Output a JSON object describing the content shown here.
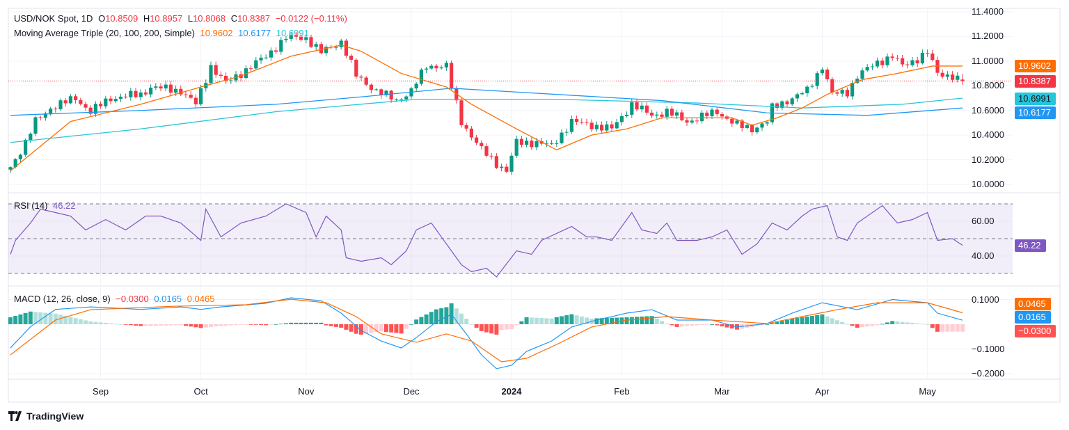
{
  "header": {
    "symbol": "USD/NOK Spot, 1D",
    "o_label": "O",
    "o": "10.8509",
    "h_label": "H",
    "h": "10.8957",
    "l_label": "L",
    "l": "10.8068",
    "c_label": "C",
    "c": "10.8387",
    "change": "−0.0122 (−0.11%)",
    "ma_title": "Moving Average Triple (20, 100, 200, Simple)",
    "ma20": "10.9602",
    "ma100": "10.6177",
    "ma200": "10.6991"
  },
  "rsi_legend": {
    "title": "RSI (14)",
    "value": "46.22"
  },
  "macd_legend": {
    "title": "MACD (12, 26, close, 9)",
    "hist": "−0.0300",
    "macd": "0.0165",
    "signal": "0.0465"
  },
  "branding": {
    "logo_icon": "tradingview-logo-icon",
    "name": "TradingView"
  },
  "colors": {
    "up": "#089981",
    "down": "#f23645",
    "ma20": "#ff6d00",
    "ma100": "#2196f3",
    "ma200": "#26c6da",
    "rsi": "#7e57c2",
    "macd": "#2196f3",
    "signal": "#ff6d00"
  },
  "chart_data": [
    {
      "type": "candlestick",
      "title": "USD/NOK Spot, 1D",
      "ylim": [
        10.0,
        11.4
      ],
      "y_ticks": [
        "11.4000",
        "11.2000",
        "11.0000",
        "10.8000",
        "10.6000",
        "10.4000",
        "10.2000",
        "10.0000"
      ],
      "x_ticks": [
        {
          "label": "Sep",
          "index": 18
        },
        {
          "label": "Oct",
          "index": 38
        },
        {
          "label": "Nov",
          "index": 59
        },
        {
          "label": "Dec",
          "index": 80
        },
        {
          "label": "2024",
          "index": 100
        },
        {
          "label": "Feb",
          "index": 122
        },
        {
          "label": "Mar",
          "index": 142
        },
        {
          "label": "Apr",
          "index": 162
        },
        {
          "label": "May",
          "index": 183
        }
      ],
      "bars": 191,
      "close_path": [
        [
          0,
          10.14
        ],
        [
          3,
          10.34
        ],
        [
          5,
          10.51
        ],
        [
          8,
          10.62
        ],
        [
          13,
          10.7
        ],
        [
          16,
          10.59
        ],
        [
          20,
          10.7
        ],
        [
          26,
          10.73
        ],
        [
          28,
          10.79
        ],
        [
          34,
          10.76
        ],
        [
          37,
          10.65
        ],
        [
          40,
          10.96
        ],
        [
          43,
          10.82
        ],
        [
          47,
          10.93
        ],
        [
          51,
          11.04
        ],
        [
          55,
          11.19
        ],
        [
          59,
          11.19
        ],
        [
          62,
          11.07
        ],
        [
          66,
          11.16
        ],
        [
          67,
          11.07
        ],
        [
          69,
          10.88
        ],
        [
          73,
          10.76
        ],
        [
          77,
          10.68
        ],
        [
          80,
          10.76
        ],
        [
          83,
          10.96
        ],
        [
          87,
          10.96
        ],
        [
          88,
          10.79
        ],
        [
          90,
          10.51
        ],
        [
          94,
          10.28
        ],
        [
          97,
          10.17
        ],
        [
          99,
          10.11
        ],
        [
          101,
          10.34
        ],
        [
          105,
          10.34
        ],
        [
          108,
          10.31
        ],
        [
          112,
          10.51
        ],
        [
          116,
          10.48
        ],
        [
          120,
          10.45
        ],
        [
          124,
          10.65
        ],
        [
          128,
          10.56
        ],
        [
          131,
          10.59
        ],
        [
          135,
          10.51
        ],
        [
          141,
          10.59
        ],
        [
          145,
          10.48
        ],
        [
          148,
          10.45
        ],
        [
          151,
          10.51
        ],
        [
          152,
          10.62
        ],
        [
          156,
          10.7
        ],
        [
          159,
          10.76
        ],
        [
          162,
          10.96
        ],
        [
          164,
          10.73
        ],
        [
          167,
          10.75
        ],
        [
          169,
          10.88
        ],
        [
          173,
          10.99
        ],
        [
          176,
          11.04
        ],
        [
          178,
          10.96
        ],
        [
          181,
          11.02
        ],
        [
          183,
          11.07
        ],
        [
          185,
          10.9
        ],
        [
          188,
          10.88
        ],
        [
          189,
          10.8509
        ]
      ],
      "last_candle": {
        "open": 10.8509,
        "high": 10.8957,
        "low": 10.8068,
        "close": 10.8387
      },
      "last_price": "10.8387",
      "series": [
        {
          "name": "SMA 20",
          "last": "10.9602",
          "values": [
            [
              0,
              10.11
            ],
            [
              12,
              10.51
            ],
            [
              26,
              10.65
            ],
            [
              38,
              10.79
            ],
            [
              46,
              10.88
            ],
            [
              56,
              11.04
            ],
            [
              66,
              11.13
            ],
            [
              70,
              11.08
            ],
            [
              78,
              10.9
            ],
            [
              87,
              10.79
            ],
            [
              92,
              10.65
            ],
            [
              101,
              10.45
            ],
            [
              109,
              10.28
            ],
            [
              116,
              10.4
            ],
            [
              123,
              10.45
            ],
            [
              130,
              10.54
            ],
            [
              137,
              10.54
            ],
            [
              144,
              10.54
            ],
            [
              148,
              10.48
            ],
            [
              153,
              10.54
            ],
            [
              158,
              10.62
            ],
            [
              163,
              10.73
            ],
            [
              170,
              10.85
            ],
            [
              177,
              10.9
            ],
            [
              184,
              10.96
            ],
            [
              190,
              10.96
            ]
          ]
        },
        {
          "name": "SMA 100",
          "last": "10.6177",
          "values": [
            [
              0,
              10.56
            ],
            [
              26,
              10.6
            ],
            [
              53,
              10.65
            ],
            [
              70,
              10.71
            ],
            [
              88,
              10.78
            ],
            [
              109,
              10.73
            ],
            [
              130,
              10.68
            ],
            [
              151,
              10.58
            ],
            [
              171,
              10.56
            ],
            [
              190,
              10.62
            ]
          ]
        },
        {
          "name": "SMA 200",
          "last": "10.6991",
          "values": [
            [
              0,
              10.34
            ],
            [
              26,
              10.45
            ],
            [
              53,
              10.59
            ],
            [
              81,
              10.69
            ],
            [
              109,
              10.69
            ],
            [
              137,
              10.66
            ],
            [
              158,
              10.62
            ],
            [
              178,
              10.65
            ],
            [
              190,
              10.7
            ]
          ]
        }
      ]
    },
    {
      "type": "line",
      "title": "RSI (14)",
      "ylim": [
        25,
        75
      ],
      "bands": [
        30,
        50,
        70
      ],
      "y_ticks": [
        "60.00",
        "40.00"
      ],
      "last": "46.22",
      "values": [
        [
          0,
          41
        ],
        [
          1,
          49
        ],
        [
          4,
          59
        ],
        [
          6,
          67
        ],
        [
          9,
          65
        ],
        [
          12,
          63
        ],
        [
          15,
          55
        ],
        [
          19,
          61
        ],
        [
          23,
          55
        ],
        [
          27,
          63
        ],
        [
          30,
          63
        ],
        [
          34,
          59
        ],
        [
          38,
          49
        ],
        [
          39,
          67
        ],
        [
          42,
          51
        ],
        [
          46,
          59
        ],
        [
          51,
          63
        ],
        [
          55,
          70
        ],
        [
          59,
          65
        ],
        [
          61,
          51
        ],
        [
          63,
          63
        ],
        [
          66,
          55
        ],
        [
          67,
          39
        ],
        [
          70,
          37
        ],
        [
          74,
          39
        ],
        [
          76,
          35
        ],
        [
          79,
          43
        ],
        [
          81,
          55
        ],
        [
          84,
          59
        ],
        [
          88,
          43
        ],
        [
          90,
          35
        ],
        [
          92,
          31
        ],
        [
          95,
          33
        ],
        [
          97,
          28
        ],
        [
          101,
          43
        ],
        [
          104,
          41
        ],
        [
          106,
          49
        ],
        [
          112,
          57
        ],
        [
          115,
          51
        ],
        [
          117,
          51
        ],
        [
          120,
          49
        ],
        [
          124,
          65
        ],
        [
          126,
          55
        ],
        [
          129,
          53
        ],
        [
          131,
          59
        ],
        [
          133,
          49
        ],
        [
          137,
          49
        ],
        [
          140,
          51
        ],
        [
          143,
          55
        ],
        [
          146,
          41
        ],
        [
          149,
          47
        ],
        [
          152,
          59
        ],
        [
          155,
          55
        ],
        [
          158,
          63
        ],
        [
          160,
          67
        ],
        [
          163,
          69
        ],
        [
          165,
          51
        ],
        [
          167,
          49
        ],
        [
          169,
          59
        ],
        [
          174,
          69
        ],
        [
          177,
          59
        ],
        [
          180,
          61
        ],
        [
          183,
          65
        ],
        [
          185,
          49
        ],
        [
          188,
          50
        ],
        [
          190,
          46.22
        ]
      ]
    },
    {
      "type": "line+histogram",
      "title": "MACD (12, 26, close, 9)",
      "ylim": [
        -0.2,
        0.12
      ],
      "y_ticks": [
        "0.1000",
        "-0.1000",
        "-0.2000"
      ],
      "series": [
        {
          "name": "MACD",
          "last": "0.0165",
          "values": [
            [
              0,
              -0.096
            ],
            [
              4,
              -0.01
            ],
            [
              9,
              0.06
            ],
            [
              16,
              0.07
            ],
            [
              26,
              0.06
            ],
            [
              34,
              0.07
            ],
            [
              38,
              0.06
            ],
            [
              42,
              0.07
            ],
            [
              51,
              0.085
            ],
            [
              56,
              0.107
            ],
            [
              62,
              0.095
            ],
            [
              66,
              0.045
            ],
            [
              70,
              -0.025
            ],
            [
              74,
              -0.068
            ],
            [
              78,
              -0.096
            ],
            [
              81,
              -0.054
            ],
            [
              85,
              0.01
            ],
            [
              88,
              0.04
            ],
            [
              91,
              -0.04
            ],
            [
              94,
              -0.124
            ],
            [
              97,
              -0.18
            ],
            [
              100,
              -0.166
            ],
            [
              103,
              -0.11
            ],
            [
              108,
              -0.068
            ],
            [
              112,
              -0.011
            ],
            [
              117,
              0.017
            ],
            [
              123,
              0.045
            ],
            [
              128,
              0.059
            ],
            [
              133,
              0.017
            ],
            [
              140,
              0.017
            ],
            [
              145,
              -0.011
            ],
            [
              151,
              0.003
            ],
            [
              156,
              0.045
            ],
            [
              162,
              0.087
            ],
            [
              169,
              0.059
            ],
            [
              176,
              0.1
            ],
            [
              183,
              0.087
            ],
            [
              185,
              0.045
            ],
            [
              190,
              0.0165
            ]
          ]
        },
        {
          "name": "Signal",
          "last": "0.0465",
          "values": [
            [
              0,
              -0.124
            ],
            [
              9,
              0.017
            ],
            [
              16,
              0.059
            ],
            [
              33,
              0.073
            ],
            [
              47,
              0.079
            ],
            [
              56,
              0.101
            ],
            [
              63,
              0.087
            ],
            [
              69,
              0.031
            ],
            [
              74,
              -0.039
            ],
            [
              81,
              -0.073
            ],
            [
              87,
              -0.039
            ],
            [
              92,
              -0.068
            ],
            [
              98,
              -0.152
            ],
            [
              103,
              -0.138
            ],
            [
              109,
              -0.082
            ],
            [
              116,
              -0.011
            ],
            [
              123,
              0.017
            ],
            [
              131,
              0.031
            ],
            [
              140,
              0.017
            ],
            [
              151,
              0.003
            ],
            [
              158,
              0.031
            ],
            [
              165,
              0.059
            ],
            [
              173,
              0.087
            ],
            [
              183,
              0.087
            ],
            [
              190,
              0.0465
            ]
          ]
        }
      ],
      "histogram_last": "-0.0300"
    }
  ]
}
